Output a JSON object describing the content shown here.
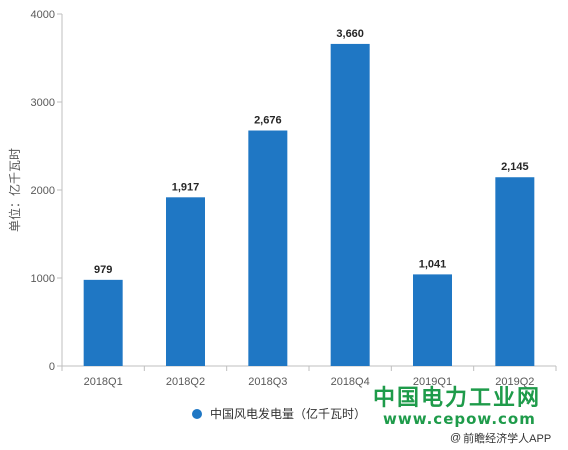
{
  "chart_data": {
    "type": "bar",
    "categories": [
      "2018Q1",
      "2018Q2",
      "2018Q3",
      "2018Q4",
      "2019Q1",
      "2019Q2"
    ],
    "series": [
      {
        "name": "中国风电发电量（亿千瓦时）",
        "values": [
          979,
          1917,
          2676,
          3660,
          1041,
          2145
        ]
      }
    ],
    "data_labels": [
      "979",
      "1,917",
      "2,676",
      "3,660",
      "1,041",
      "2,145"
    ],
    "ylabel": "单位：亿千瓦时",
    "xlabel": "",
    "ylim": [
      0,
      4000
    ],
    "yticks": [
      0,
      1000,
      2000,
      3000,
      4000
    ],
    "grid": false,
    "legend_position": "bottom",
    "bar_color": "#1f77c4"
  },
  "watermark": {
    "site_name": "中国电力工业网",
    "site_url": "www.cepow.com",
    "color": "#1e9b4a"
  },
  "credit": {
    "at": "@",
    "text": "前瞻经济学人APP"
  }
}
